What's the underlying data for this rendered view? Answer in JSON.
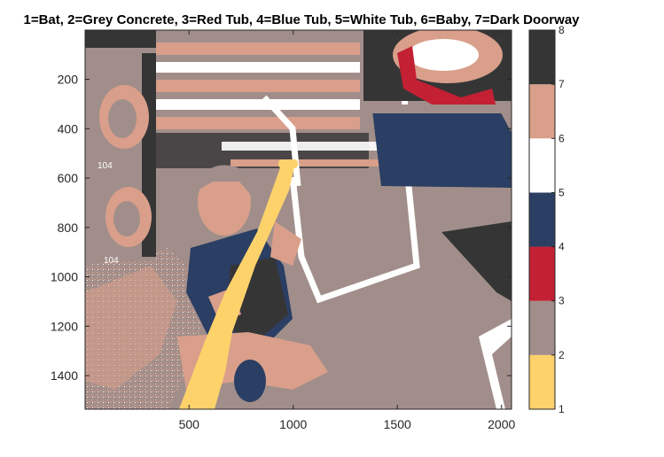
{
  "chart_data": {
    "type": "heatmap",
    "title": "1=Bat, 2=Grey Concrete, 3=Red Tub, 4=Blue Tub, 5=White Tub, 6=Baby, 7=Dark Doorway",
    "xlabel": "",
    "ylabel": "",
    "xlim": [
      1,
      2048
    ],
    "ylim": [
      1,
      1536
    ],
    "x_ticks": [
      500,
      1000,
      1500,
      2000
    ],
    "y_ticks": [
      200,
      400,
      600,
      800,
      1000,
      1200,
      1400
    ],
    "colorbar": {
      "range": [
        1,
        8
      ],
      "ticks": [
        1,
        2,
        3,
        4,
        5,
        6,
        7,
        8
      ],
      "bands": [
        {
          "value": 1,
          "color": "#FDD26B"
        },
        {
          "value": 2,
          "color": "#A18E8A"
        },
        {
          "value": 3,
          "color": "#C32033"
        },
        {
          "value": 4,
          "color": "#2B3E63"
        },
        {
          "value": 5,
          "color": "#FFFFFF"
        },
        {
          "value": 6,
          "color": "#D99F8A"
        },
        {
          "value": 7,
          "color": "#353536"
        }
      ]
    }
  },
  "palette": {
    "bat": "#FDD26B",
    "grey_concrete": "#A18E8A",
    "red_tub": "#C32033",
    "blue_tub": "#2B3E63",
    "white_tub": "#FFFFFF",
    "baby": "#D99F8A",
    "dark_doorway": "#353536"
  },
  "image_text": {
    "tag1": "104",
    "tag2": "104"
  }
}
